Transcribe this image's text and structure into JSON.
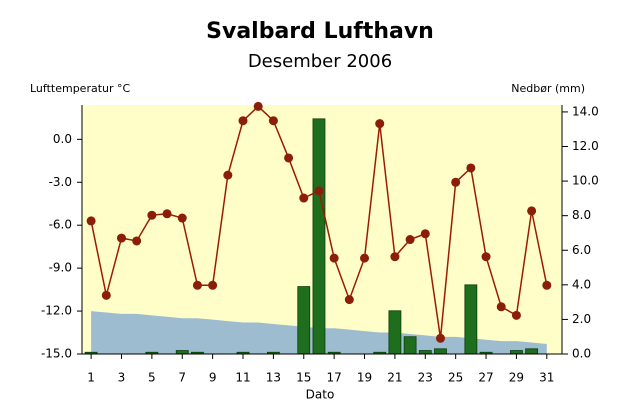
{
  "chart_data": {
    "type": "combo",
    "title": "Svalbard Lufthavn",
    "subtitle": "Desember 2006",
    "y_label": "Lufttemperatur °C",
    "y2_label": "Nedbør (mm)",
    "x_label": "Dato",
    "x": [
      1,
      2,
      3,
      4,
      5,
      6,
      7,
      8,
      9,
      10,
      11,
      12,
      13,
      14,
      15,
      16,
      17,
      18,
      19,
      20,
      21,
      22,
      23,
      24,
      25,
      26,
      27,
      28,
      29,
      30,
      31
    ],
    "xlim": [
      0.4,
      32.0
    ],
    "xticks": [
      1,
      3,
      5,
      7,
      9,
      11,
      13,
      15,
      17,
      19,
      21,
      23,
      25,
      27,
      29,
      31
    ],
    "ylim": [
      -15,
      2.4
    ],
    "yticks": [
      {
        "value": -15,
        "label": "-15.0"
      },
      {
        "value": -12,
        "label": "-12.0"
      },
      {
        "value": -9,
        "label": "-9.0"
      },
      {
        "value": -6,
        "label": "-6.0"
      },
      {
        "value": -3,
        "label": "-3.0"
      },
      {
        "value": 0,
        "label": "0.0"
      }
    ],
    "y2lim": [
      0,
      14.4
    ],
    "y2ticks": [
      {
        "value": 0,
        "label": "0.0"
      },
      {
        "value": 2,
        "label": "2.0"
      },
      {
        "value": 4,
        "label": "4.0"
      },
      {
        "value": 6,
        "label": "6.0"
      },
      {
        "value": 8,
        "label": "8.0"
      },
      {
        "value": 10,
        "label": "10.0"
      },
      {
        "value": 12,
        "label": "12.0"
      },
      {
        "value": 14,
        "label": "14.0"
      }
    ],
    "series": [
      {
        "kind": "area",
        "color": "#9dbccf",
        "values": [
          -12.0,
          -12.1,
          -12.2,
          -12.2,
          -12.3,
          -12.4,
          -12.5,
          -12.5,
          -12.6,
          -12.7,
          -12.8,
          -12.8,
          -12.9,
          -13.0,
          -13.1,
          -13.2,
          -13.2,
          -13.3,
          -13.4,
          -13.5,
          -13.5,
          -13.6,
          -13.7,
          -13.8,
          -13.8,
          -13.9,
          -14.0,
          -14.1,
          -14.1,
          -14.2,
          -14.3
        ]
      },
      {
        "kind": "bar",
        "axis": "y2",
        "color": "#1e6e1e",
        "values": [
          0.1,
          0,
          0,
          0,
          0.1,
          0,
          0.2,
          0.1,
          0,
          0,
          0.1,
          0,
          0.1,
          0,
          3.9,
          13.6,
          0.1,
          0,
          0,
          0.1,
          2.5,
          1.0,
          0.2,
          0.3,
          0,
          4.0,
          0.1,
          0,
          0.2,
          0.3,
          0
        ]
      },
      {
        "kind": "line",
        "color": "#9b1c00",
        "values": [
          -5.7,
          -10.9,
          -6.9,
          -7.1,
          -5.3,
          -5.2,
          -5.5,
          -10.2,
          -10.2,
          -2.5,
          1.3,
          2.3,
          1.3,
          -1.3,
          -4.1,
          -3.6,
          -8.3,
          -11.2,
          -8.3,
          1.1,
          -8.2,
          -7.0,
          -6.6,
          -13.9,
          -3.0,
          -2.0,
          -8.2,
          -11.7,
          -12.3,
          -5.0,
          -10.2
        ]
      }
    ]
  }
}
